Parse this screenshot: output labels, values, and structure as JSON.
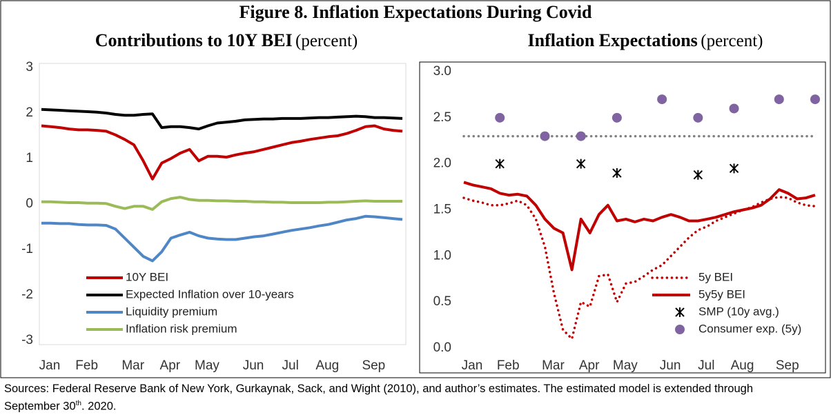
{
  "title": "Figure 8. Inflation Expectations During Covid",
  "note": [
    "Sources: Federal Reserve Bank of New York, Gurkaynak, Sack, and Wight (2010), and author’s estimates. The estimated model is extended through September 30",
    "th",
    ". 2020."
  ],
  "chart_data": [
    {
      "type": "line",
      "title": "Contributions to 10Y BEI",
      "unit": "(percent)",
      "categories": [
        "Jan",
        null,
        null,
        null,
        "Feb",
        null,
        null,
        null,
        null,
        "Mar",
        null,
        null,
        null,
        "Apr",
        null,
        null,
        null,
        "May",
        null,
        null,
        null,
        null,
        "Jun",
        null,
        null,
        null,
        "Jul",
        null,
        null,
        null,
        "Aug",
        null,
        null,
        null,
        null,
        "Sep",
        null,
        null,
        null,
        null
      ],
      "ylim": [
        -3,
        3
      ],
      "yticks": [
        -3,
        -2,
        -1,
        0,
        1,
        2,
        3
      ],
      "grid": false,
      "legend": "lower left",
      "series": [
        {
          "name": "10Y BEI",
          "color": "#c00000",
          "values": [
            1.72,
            1.7,
            1.68,
            1.65,
            1.63,
            1.63,
            1.62,
            1.6,
            1.52,
            1.42,
            1.3,
            0.95,
            0.55,
            0.9,
            1.0,
            1.12,
            1.2,
            0.95,
            1.05,
            1.05,
            1.03,
            1.08,
            1.12,
            1.15,
            1.2,
            1.25,
            1.3,
            1.35,
            1.38,
            1.42,
            1.45,
            1.48,
            1.5,
            1.55,
            1.62,
            1.7,
            1.72,
            1.65,
            1.62,
            1.6
          ]
        },
        {
          "name": "Expected Inflation over 10-years",
          "color": "#000000",
          "values": [
            2.08,
            2.07,
            2.06,
            2.05,
            2.04,
            2.03,
            2.02,
            2.0,
            1.97,
            1.95,
            1.95,
            1.97,
            1.98,
            1.68,
            1.7,
            1.7,
            1.68,
            1.65,
            1.72,
            1.78,
            1.8,
            1.82,
            1.85,
            1.86,
            1.87,
            1.87,
            1.88,
            1.88,
            1.88,
            1.89,
            1.9,
            1.9,
            1.91,
            1.92,
            1.93,
            1.92,
            1.9,
            1.9,
            1.89,
            1.88
          ]
        },
        {
          "name": "Liquidity premium",
          "color": "#4f86c6",
          "values": [
            -0.42,
            -0.42,
            -0.43,
            -0.43,
            -0.45,
            -0.46,
            -0.46,
            -0.47,
            -0.55,
            -0.75,
            -0.95,
            -1.15,
            -1.25,
            -1.05,
            -0.75,
            -0.68,
            -0.62,
            -0.7,
            -0.75,
            -0.77,
            -0.78,
            -0.78,
            -0.75,
            -0.72,
            -0.7,
            -0.66,
            -0.62,
            -0.58,
            -0.55,
            -0.52,
            -0.48,
            -0.45,
            -0.4,
            -0.35,
            -0.32,
            -0.27,
            -0.28,
            -0.3,
            -0.32,
            -0.34
          ]
        },
        {
          "name": "Inflation risk premium",
          "color": "#9bbb59",
          "values": [
            0.05,
            0.05,
            0.04,
            0.03,
            0.03,
            0.02,
            0.02,
            0.01,
            -0.05,
            -0.1,
            -0.05,
            -0.05,
            -0.12,
            0.05,
            0.12,
            0.15,
            0.1,
            0.08,
            0.08,
            0.07,
            0.07,
            0.06,
            0.06,
            0.05,
            0.05,
            0.04,
            0.04,
            0.03,
            0.03,
            0.03,
            0.03,
            0.04,
            0.04,
            0.05,
            0.06,
            0.07,
            0.06,
            0.06,
            0.06,
            0.06
          ]
        }
      ]
    },
    {
      "type": "line",
      "title": "Inflation Expectations",
      "unit": "(percent)",
      "categories": [
        "Jan",
        null,
        null,
        null,
        "Feb",
        null,
        null,
        null,
        null,
        "Mar",
        null,
        null,
        null,
        "Apr",
        null,
        null,
        null,
        "May",
        null,
        null,
        null,
        null,
        "Jun",
        null,
        null,
        null,
        "Jul",
        null,
        null,
        null,
        "Aug",
        null,
        null,
        null,
        null,
        "Sep",
        null,
        null,
        null,
        null
      ],
      "ylim": [
        0,
        3
      ],
      "yticks": [
        {
          "value": 0,
          "label": "0.0"
        },
        0.5,
        {
          "value": 1,
          "label": "1.0"
        },
        1.5,
        {
          "value": 2,
          "label": "2.0"
        },
        2.5,
        {
          "value": 3,
          "label": "3.0"
        }
      ],
      "grid": false,
      "legend": "lower right",
      "reference_line": {
        "value": 2.3,
        "color": "#808080",
        "style": "dotted"
      },
      "series": [
        {
          "name": "5y BEI",
          "color": "#c00000",
          "style": "dotted",
          "values": [
            1.63,
            1.6,
            1.58,
            1.55,
            1.55,
            1.57,
            1.6,
            1.55,
            1.4,
            1.1,
            0.6,
            0.2,
            0.1,
            0.5,
            0.45,
            0.78,
            0.8,
            0.5,
            0.7,
            0.72,
            0.78,
            0.85,
            0.9,
            1.0,
            1.1,
            1.2,
            1.28,
            1.32,
            1.38,
            1.42,
            1.46,
            1.5,
            1.53,
            1.58,
            1.62,
            1.64,
            1.63,
            1.58,
            1.55,
            1.54
          ]
        },
        {
          "name": "5y5y BEI",
          "color": "#c00000",
          "style": "solid",
          "values": [
            1.8,
            1.77,
            1.75,
            1.73,
            1.68,
            1.66,
            1.67,
            1.65,
            1.55,
            1.4,
            1.3,
            1.25,
            0.85,
            1.4,
            1.25,
            1.45,
            1.55,
            1.38,
            1.4,
            1.37,
            1.4,
            1.38,
            1.42,
            1.45,
            1.42,
            1.38,
            1.38,
            1.4,
            1.42,
            1.45,
            1.48,
            1.5,
            1.52,
            1.55,
            1.62,
            1.72,
            1.68,
            1.62,
            1.63,
            1.66
          ]
        },
        {
          "name": "SMP (10y avg.)",
          "color": "#000000",
          "type": "scatter",
          "marker": "x",
          "values": [
            null,
            null,
            null,
            null,
            2,
            null,
            null,
            null,
            null,
            null,
            null,
            null,
            null,
            2,
            null,
            null,
            null,
            1.9,
            null,
            null,
            null,
            null,
            null,
            null,
            null,
            null,
            1.88,
            null,
            null,
            null,
            1.95,
            null,
            null,
            null,
            null,
            null,
            null,
            null,
            null,
            null
          ]
        },
        {
          "name": "Consumer exp. (5y)",
          "color": "#8064a2",
          "type": "scatter",
          "marker": "circle",
          "values": [
            null,
            null,
            null,
            null,
            2.5,
            null,
            null,
            null,
            null,
            2.3,
            null,
            null,
            null,
            2.3,
            null,
            null,
            null,
            2.5,
            null,
            null,
            null,
            null,
            2.7,
            null,
            null,
            null,
            2.5,
            null,
            null,
            null,
            2.6,
            null,
            null,
            null,
            null,
            2.7,
            null,
            null,
            null,
            2.7
          ]
        }
      ]
    }
  ]
}
